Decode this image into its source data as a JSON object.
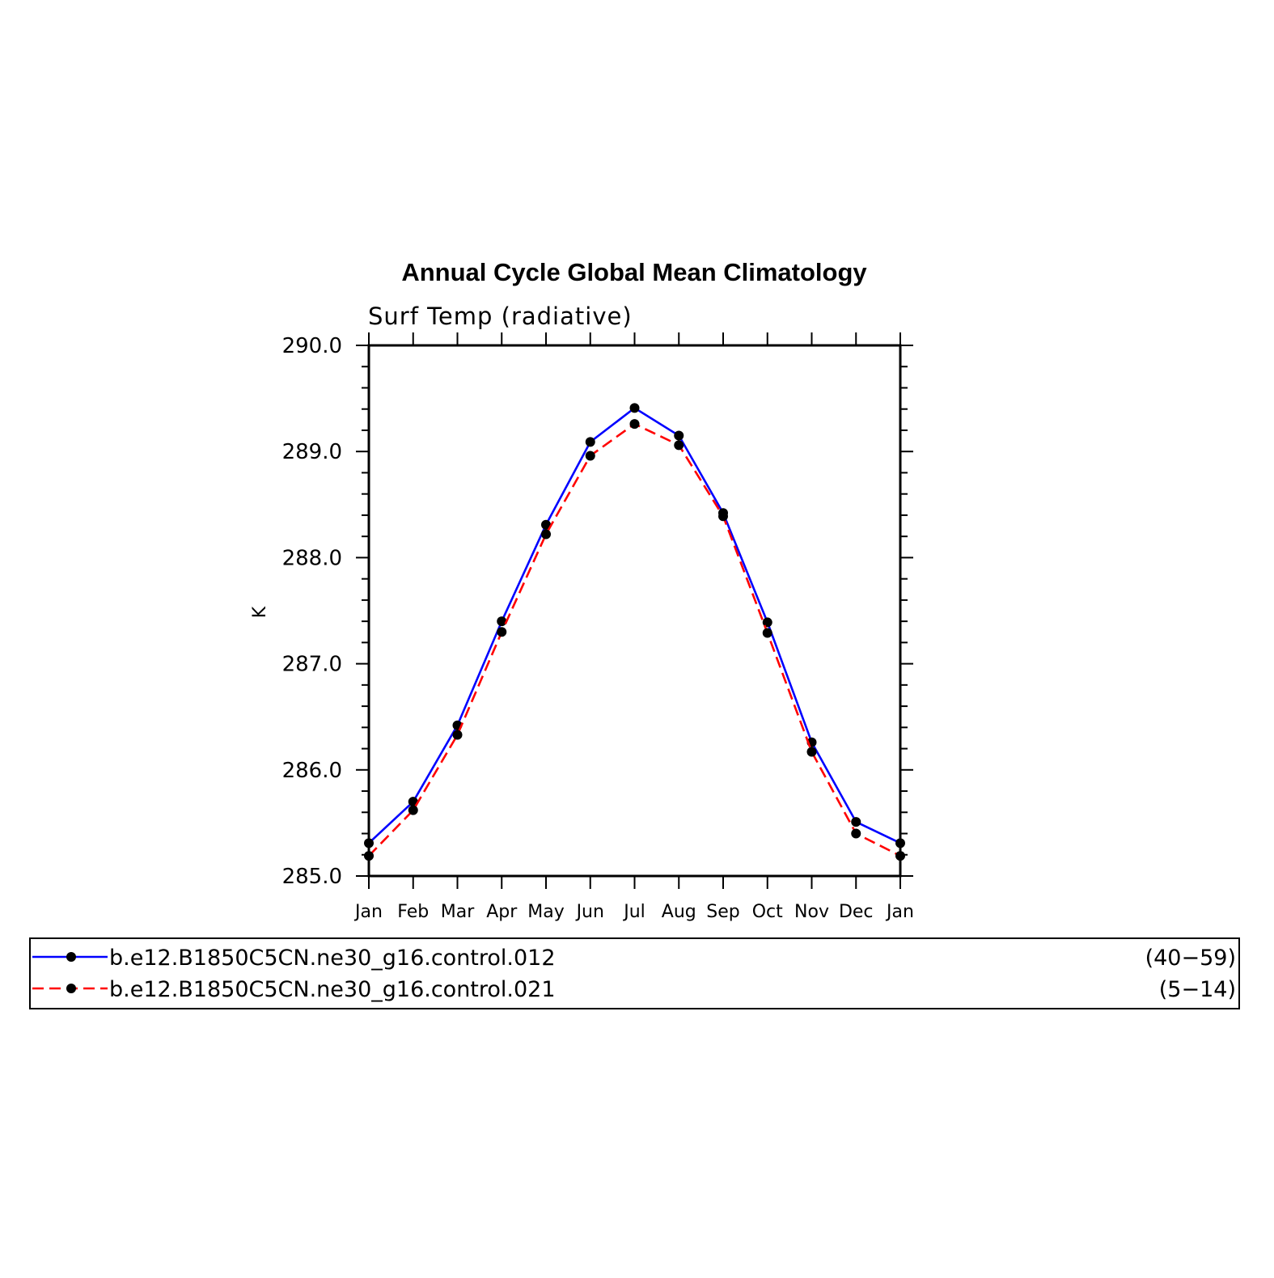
{
  "chart_data": {
    "type": "line",
    "title": "Annual Cycle Global Mean Climatology",
    "subtitle": "Surf Temp (radiative)",
    "xlabel": "",
    "ylabel": "K",
    "categories": [
      "Jan",
      "Feb",
      "Mar",
      "Apr",
      "May",
      "Jun",
      "Jul",
      "Aug",
      "Sep",
      "Oct",
      "Nov",
      "Dec",
      "Jan"
    ],
    "ylim": [
      285.0,
      290.0
    ],
    "yticks": [
      "290.0",
      "289.0",
      "288.0",
      "287.0",
      "286.0",
      "285.0"
    ],
    "grid": false,
    "legend_position": "bottom",
    "series": [
      {
        "name": "b.e12.B1850C5CN.ne30_g16.control.012",
        "years": "(40−59)",
        "color": "#0000ff",
        "style": "solid",
        "values": [
          285.31,
          285.7,
          286.42,
          287.4,
          288.31,
          289.09,
          289.41,
          289.15,
          288.42,
          287.39,
          286.26,
          285.51,
          285.31
        ]
      },
      {
        "name": "b.e12.B1850C5CN.ne30_g16.control.021",
        "years": "(5−14)",
        "color": "#ff0000",
        "style": "dashed",
        "values": [
          285.19,
          285.62,
          286.33,
          287.3,
          288.22,
          288.96,
          289.26,
          289.06,
          288.39,
          287.29,
          286.17,
          285.4,
          285.19
        ]
      }
    ],
    "marker_color": "#000000"
  }
}
